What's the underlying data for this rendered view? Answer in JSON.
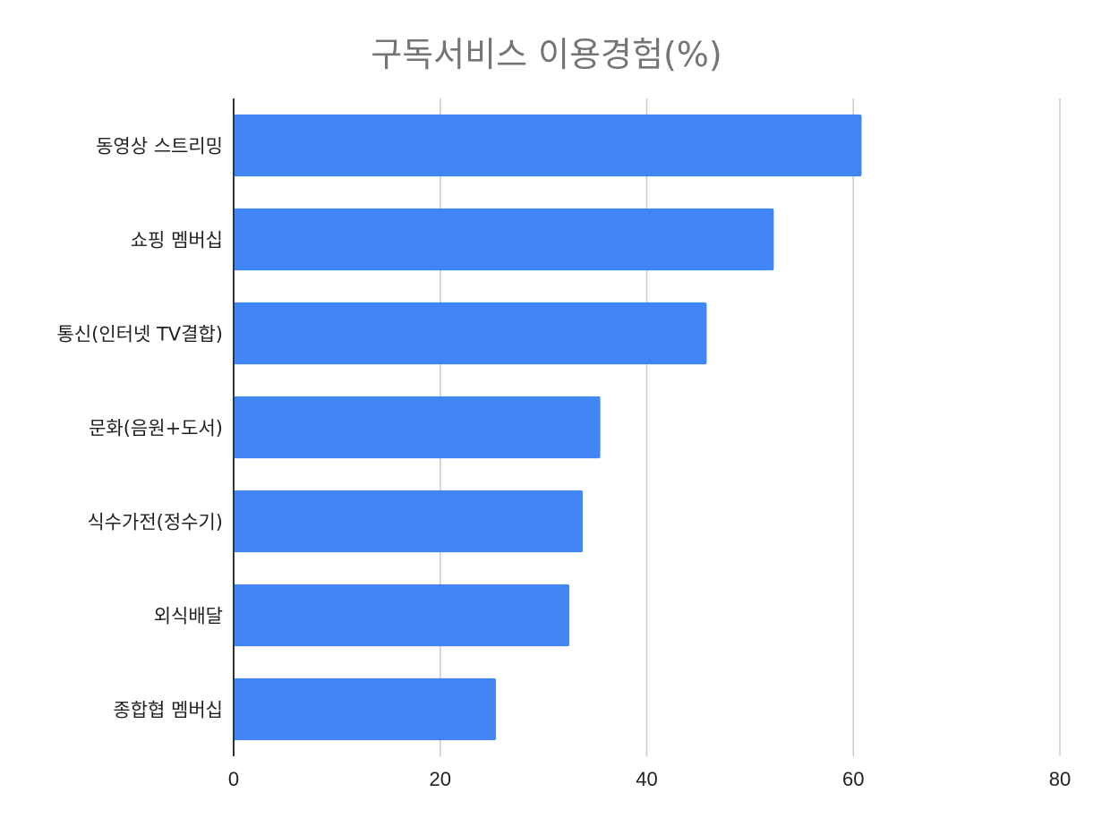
{
  "chart_data": {
    "type": "bar",
    "orientation": "horizontal",
    "title": "구독서비스 이용경험(%)",
    "categories": [
      "동영상 스트리밍",
      "쇼핑 멤버십",
      "통신(인터넷 TV결합)",
      "문화(음원+도서)",
      "식수가전(정수기)",
      "외식배달",
      "종합협 멤버십"
    ],
    "values": [
      60.8,
      52.3,
      45.8,
      35.5,
      33.8,
      32.5,
      25.4
    ],
    "xlim": [
      0,
      80
    ],
    "xticks": [
      "0",
      "20",
      "40",
      "60",
      "80"
    ],
    "grid": "vertical",
    "bar_color": "#4285f4",
    "grid_color": "#cccccc",
    "axis_color": "#333333"
  }
}
